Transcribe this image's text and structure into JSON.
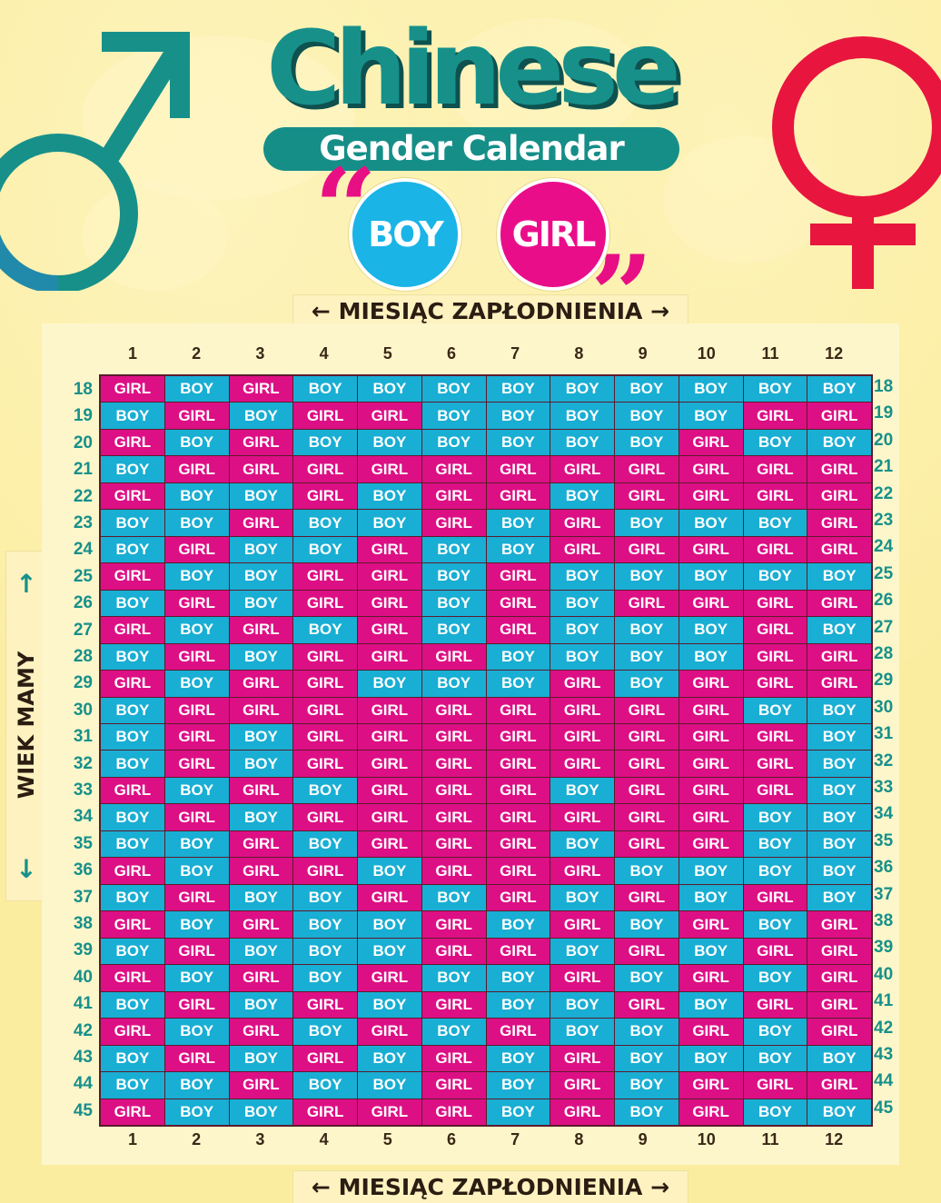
{
  "title": "Chinese",
  "subtitle": "Gender Calendar",
  "legend": {
    "boy": "BOY",
    "girl": "GIRL"
  },
  "quotes": {
    "open": "“",
    "close": "”"
  },
  "axis": {
    "month_label": "MIESIĄC ZAPŁODNIENIA",
    "arrow_left": "←",
    "arrow_right": "→",
    "age_label": "WIEK MAMY",
    "arrow_up": "↑",
    "arrow_down": "↓"
  },
  "colors": {
    "boy": "#19aed3",
    "girl": "#dd0f85",
    "title": "#17908a",
    "male_symbol": "#17908a",
    "female_symbol": "#e8153f",
    "background": "#fbeda0"
  },
  "icons": [
    "male-symbol-icon",
    "female-symbol-icon",
    "arrow-up-icon",
    "arrow-down-icon"
  ],
  "months": [
    "1",
    "2",
    "3",
    "4",
    "5",
    "6",
    "7",
    "8",
    "9",
    "10",
    "11",
    "12"
  ],
  "ages": [
    "18",
    "19",
    "20",
    "21",
    "22",
    "23",
    "24",
    "25",
    "26",
    "27",
    "28",
    "29",
    "30",
    "31",
    "32",
    "33",
    "34",
    "35",
    "36",
    "37",
    "38",
    "39",
    "40",
    "41",
    "42",
    "43",
    "44",
    "45"
  ],
  "table": {
    "key": {
      "B": "BOY",
      "G": "GIRL"
    },
    "rows": [
      "GBGBBBBBBBBB",
      "BGBGGBBBBBGG",
      "GBGBBBBBBGBB",
      "BGGGGGGGGGGG",
      "GBBGBGGBGGGG",
      "BBGBBGBGBBBG",
      "BGBBGBBGGGGG",
      "GBBGGBGBBBBB",
      "BGBGGBGBGGGG",
      "GBGBGBGBBBGB",
      "BGBGGGBBBBGG",
      "GBGGBBBGBGGG",
      "BGGGGGGGGGBB",
      "BGBGGGGGGGGB",
      "BGBGGGGGGGGB",
      "GBGBGGGBGGGB",
      "BGBGGGGGGGBB",
      "BBGBGGGBGGBB",
      "GBGGBGGGBBBB",
      "BGBBGBGBGBGB",
      "GBGBBGBGBGBG",
      "BGBBBGGBGBGG",
      "GBGBGBBGBGBG",
      "BGBGBGBBGBGG",
      "GBGBGBGBBGBG",
      "BGBGBGBGBBBB",
      "BBGBBGBGBGGG",
      "GBBGGGBGBGBB"
    ]
  }
}
